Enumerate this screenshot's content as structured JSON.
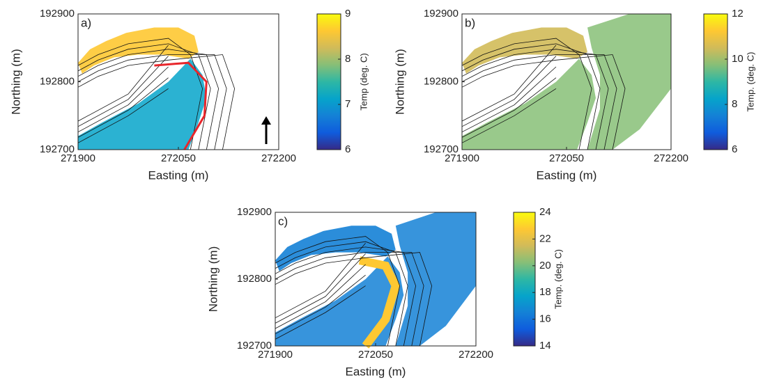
{
  "chart_data": [
    {
      "type": "map",
      "label": "a)",
      "xlabel": "Easting (m)",
      "ylabel": "Northing (m)",
      "xlim": [
        271900,
        272200
      ],
      "xticks": [
        271900,
        272050,
        272200
      ],
      "ylim": [
        192700,
        192900
      ],
      "yticks": [
        192700,
        192800,
        192900
      ],
      "colorbar": {
        "label": "Temp (deg. C)",
        "lim": [
          6,
          9
        ],
        "ticks": [
          6,
          7,
          8,
          9
        ]
      },
      "colormap": [
        "#352a87",
        "#0f5cdd",
        "#1481d6",
        "#06a4ca",
        "#2eb7a4",
        "#87bf77",
        "#d1bb59",
        "#fec832",
        "#f9fb0e"
      ]
    },
    {
      "type": "map",
      "label": "b)",
      "xlabel": "Easting (m)",
      "ylabel": "Northing (m)",
      "xlim": [
        271900,
        272200
      ],
      "xticks": [
        271900,
        272050,
        272200
      ],
      "ylim": [
        192700,
        192900
      ],
      "yticks": [
        192700,
        192800,
        192900
      ],
      "colorbar": {
        "label": "Temp. (deg. C)",
        "lim": [
          6,
          12
        ],
        "ticks": [
          6,
          8,
          10,
          12
        ]
      },
      "colormap": [
        "#352a87",
        "#0f5cdd",
        "#1481d6",
        "#06a4ca",
        "#2eb7a4",
        "#87bf77",
        "#d1bb59",
        "#fec832",
        "#f9fb0e"
      ]
    },
    {
      "type": "map",
      "label": "c)",
      "xlabel": "Easting (m)",
      "ylabel": "Northing (m)",
      "xlim": [
        271900,
        272200
      ],
      "xticks": [
        271900,
        272050,
        272200
      ],
      "ylim": [
        192700,
        192900
      ],
      "yticks": [
        192700,
        192800,
        192900
      ],
      "colorbar": {
        "label": "Temp. (deg. C)",
        "lim": [
          14,
          24
        ],
        "ticks": [
          14,
          16,
          18,
          20,
          22,
          24
        ]
      },
      "colormap": [
        "#352a87",
        "#0f5cdd",
        "#1481d6",
        "#06a4ca",
        "#2eb7a4",
        "#87bf77",
        "#d1bb59",
        "#fec832",
        "#f9fb0e"
      ]
    }
  ]
}
